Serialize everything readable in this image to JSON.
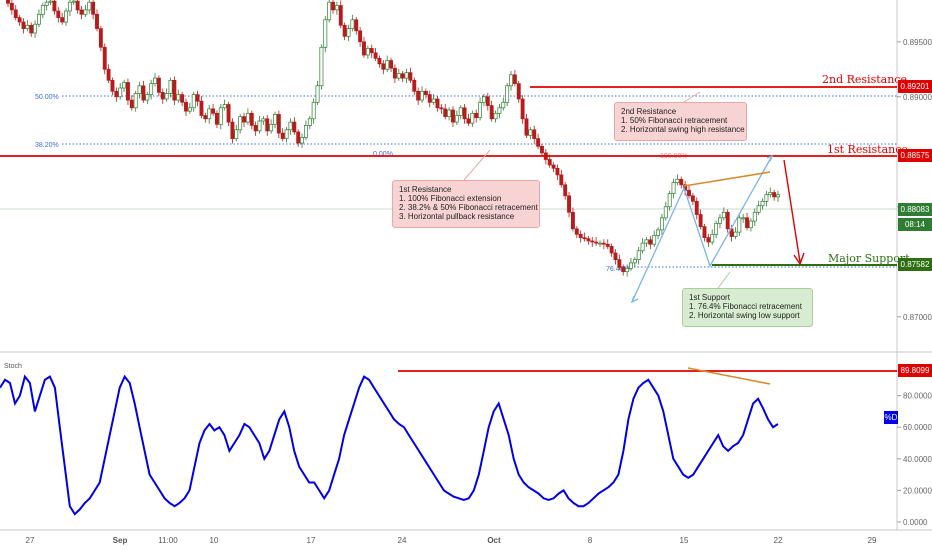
{
  "colors": {
    "candle_up": "#2e7d32",
    "candle_down": "#b71c1c",
    "resistance": "#e00000",
    "support": "#2e6f12",
    "fib": "#3a6fd8",
    "stoch": "#0000e6",
    "trend_orange": "#d98b2b",
    "pattern_blue": "#7ab4e8"
  },
  "levels": [
    {
      "name": "2nd Resistance",
      "price_tag": "0.89201",
      "color": "#e00000"
    },
    {
      "name": "1st Resistance",
      "price_tag": "0.88575",
      "color": "#e00000"
    },
    {
      "name": "Major Support",
      "price_tag": "0.87582",
      "color": "#2e6f12"
    }
  ],
  "current_price": {
    "price": "0.88083",
    "timer": "08:14"
  },
  "fib_labels": {
    "f50": "50.00%",
    "f382": "38.20%",
    "f0": "0.00%",
    "f100": "100.00%",
    "f764": "76.40%"
  },
  "annotations": {
    "second_resistance": {
      "title": "2nd Resistance",
      "lines": [
        "1. 50% Fibonacci retracement",
        "2. Horizontal swing high resistance"
      ]
    },
    "first_resistance": {
      "title": "1st Resistance",
      "lines": [
        "1. 100% Fibonacci extension",
        "2. 38.2% & 50% Fibonacci retracement",
        "3. Horizontal pullback resistance"
      ]
    },
    "first_support": {
      "title": "1st Support",
      "lines": [
        "1. 76.4% Fibonacci retracement",
        "2. Horizontal swing low support"
      ]
    }
  },
  "stoch": {
    "label": "Stoch",
    "indicator_tag": "%D",
    "level_tag": "89.8099"
  },
  "chart_data": {
    "type": "line",
    "price_axis": {
      "ticks": [
        "0.89500",
        "0.89000",
        "0.88500",
        "0.88000",
        "0.87500",
        "0.87000"
      ],
      "ylim": [
        0.8668,
        0.8988
      ]
    },
    "stoch_axis": {
      "ticks": [
        "80.0000",
        "60.0000",
        "40.0000",
        "20.0000",
        "0.0000"
      ],
      "ylim": [
        0,
        100
      ]
    },
    "x_ticks": [
      "27",
      "Sep",
      "11:00",
      "10",
      "17",
      "24",
      "Oct",
      "8",
      "15",
      "22",
      "29"
    ],
    "series": [
      {
        "name": "",
        "values": [
          0.8985,
          0.8979,
          0.8972,
          0.8968,
          0.8962,
          0.8965,
          0.8958,
          0.8966,
          0.8975,
          0.8983,
          0.8986,
          0.8987,
          0.8978,
          0.8972,
          0.8968,
          0.8978,
          0.8986,
          0.8987,
          0.8979,
          0.8975,
          0.8979,
          0.8986,
          0.8975,
          0.8962,
          0.8945,
          0.8925,
          0.8915,
          0.8905,
          0.89,
          0.8908,
          0.8913,
          0.8897,
          0.889,
          0.8903,
          0.891,
          0.8897,
          0.8902,
          0.8912,
          0.8917,
          0.8904,
          0.8898,
          0.8903,
          0.8915,
          0.8897,
          0.8902,
          0.8895,
          0.8887,
          0.889,
          0.8902,
          0.8896,
          0.8883,
          0.888,
          0.8889,
          0.8885,
          0.8875,
          0.889,
          0.8893,
          0.8877,
          0.8862,
          0.887,
          0.8882,
          0.8877,
          0.8885,
          0.8874,
          0.8869,
          0.8878,
          0.888,
          0.8869,
          0.8875,
          0.8884,
          0.8867,
          0.8862,
          0.887,
          0.8877,
          0.8868,
          0.8858,
          0.8863,
          0.8874,
          0.888,
          0.8895,
          0.891,
          0.8945,
          0.897,
          0.8986,
          0.8979,
          0.8983,
          0.8965,
          0.8955,
          0.8962,
          0.897,
          0.896,
          0.895,
          0.8938,
          0.8944,
          0.894,
          0.8935,
          0.893,
          0.8925,
          0.8933,
          0.8926,
          0.8917,
          0.8921,
          0.8917,
          0.8922,
          0.8915,
          0.8905,
          0.8897,
          0.8905,
          0.8902,
          0.8895,
          0.8898,
          0.889,
          0.8889,
          0.8882,
          0.8888,
          0.8877,
          0.8883,
          0.889,
          0.888,
          0.8876,
          0.8885,
          0.8881,
          0.8895,
          0.89,
          0.8892,
          0.888,
          0.8885,
          0.889,
          0.8895,
          0.891,
          0.892,
          0.8912,
          0.8898,
          0.888,
          0.8865,
          0.887,
          0.8862,
          0.8855,
          0.8849,
          0.8843,
          0.8838,
          0.8835,
          0.8829,
          0.882,
          0.881,
          0.8795,
          0.878,
          0.8775,
          0.8772,
          0.8771,
          0.8769,
          0.8768,
          0.8767,
          0.8767,
          0.8766,
          0.8764,
          0.8758,
          0.8752,
          0.8745,
          0.8741,
          0.8744,
          0.8749,
          0.8752,
          0.876,
          0.8767,
          0.877,
          0.8766,
          0.8774,
          0.8779,
          0.879,
          0.88,
          0.8812,
          0.8822,
          0.8825,
          0.882,
          0.8815,
          0.881,
          0.8805,
          0.8793,
          0.8782,
          0.8772,
          0.8768,
          0.8775,
          0.8785,
          0.879,
          0.8795,
          0.878,
          0.8773,
          0.8777,
          0.879,
          0.879,
          0.8781,
          0.8787,
          0.8795,
          0.8801,
          0.8805,
          0.8811,
          0.8813,
          0.8809,
          0.8811
        ]
      },
      {
        "name": "",
        "values": [
          85,
          90,
          88,
          75,
          80,
          92,
          88,
          70,
          80,
          90,
          92,
          85,
          60,
          35,
          10,
          5,
          8,
          12,
          15,
          20,
          25,
          40,
          55,
          70,
          85,
          92,
          88,
          75,
          60,
          45,
          30,
          25,
          20,
          15,
          12,
          10,
          12,
          15,
          20,
          35,
          50,
          58,
          62,
          58,
          60,
          55,
          45,
          50,
          55,
          62,
          60,
          55,
          50,
          40,
          45,
          55,
          65,
          70,
          60,
          45,
          35,
          30,
          25,
          25,
          20,
          15,
          20,
          30,
          40,
          55,
          65,
          75,
          85,
          92,
          90,
          85,
          80,
          75,
          70,
          65,
          62,
          60,
          55,
          50,
          45,
          40,
          35,
          30,
          25,
          20,
          18,
          16,
          15,
          14,
          15,
          20,
          30,
          45,
          60,
          70,
          75,
          65,
          55,
          40,
          30,
          25,
          22,
          20,
          18,
          15,
          14,
          15,
          18,
          20,
          15,
          12,
          10,
          10,
          12,
          15,
          18,
          20,
          22,
          25,
          30,
          45,
          65,
          78,
          85,
          88,
          90,
          85,
          80,
          70,
          55,
          40,
          35,
          30,
          28,
          30,
          35,
          40,
          45,
          50,
          55,
          48,
          45,
          48,
          50,
          55,
          65,
          75,
          78,
          72,
          65,
          60,
          62
        ]
      }
    ]
  }
}
